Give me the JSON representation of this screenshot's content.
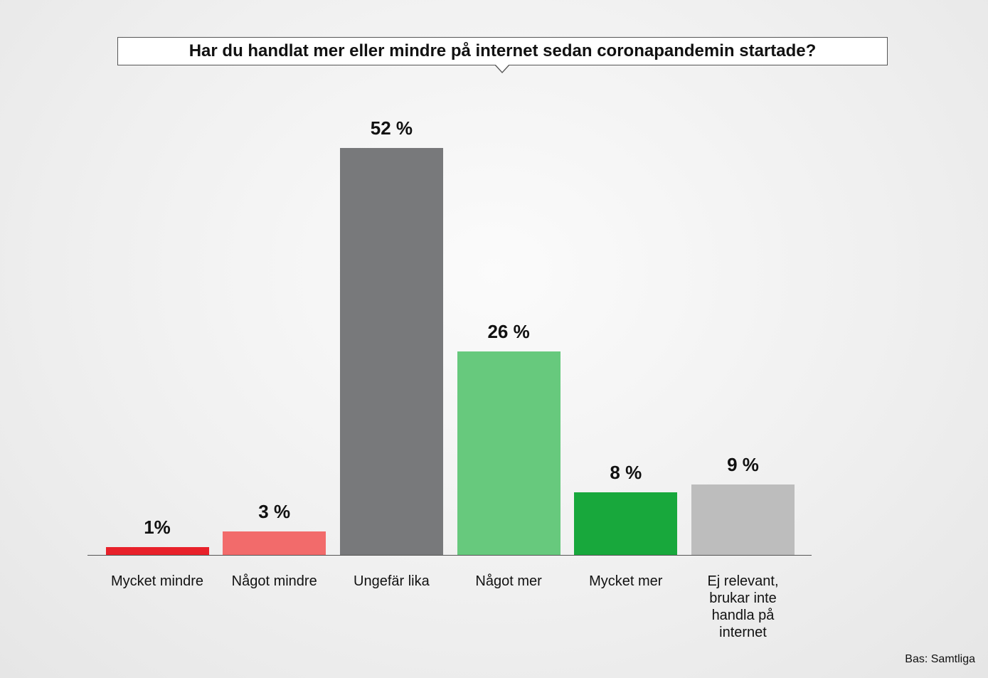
{
  "chart_data": {
    "type": "bar",
    "title": "Har du handlat mer eller mindre på internet sedan coronapandemin startade?",
    "categories": [
      "Mycket mindre",
      "Något mindre",
      "Ungefär lika",
      "Något mer",
      "Mycket mer",
      "Ej relevant, brukar inte handla på internet"
    ],
    "values": [
      1,
      3,
      52,
      26,
      8,
      9
    ],
    "value_labels": [
      "1%",
      "3 %",
      "52 %",
      "26 %",
      "8 %",
      "9 %"
    ],
    "colors": [
      "#e8212a",
      "#f26b6b",
      "#78797b",
      "#67c97d",
      "#18a83c",
      "#bdbdbd"
    ],
    "source": "Bas: Samtliga"
  }
}
